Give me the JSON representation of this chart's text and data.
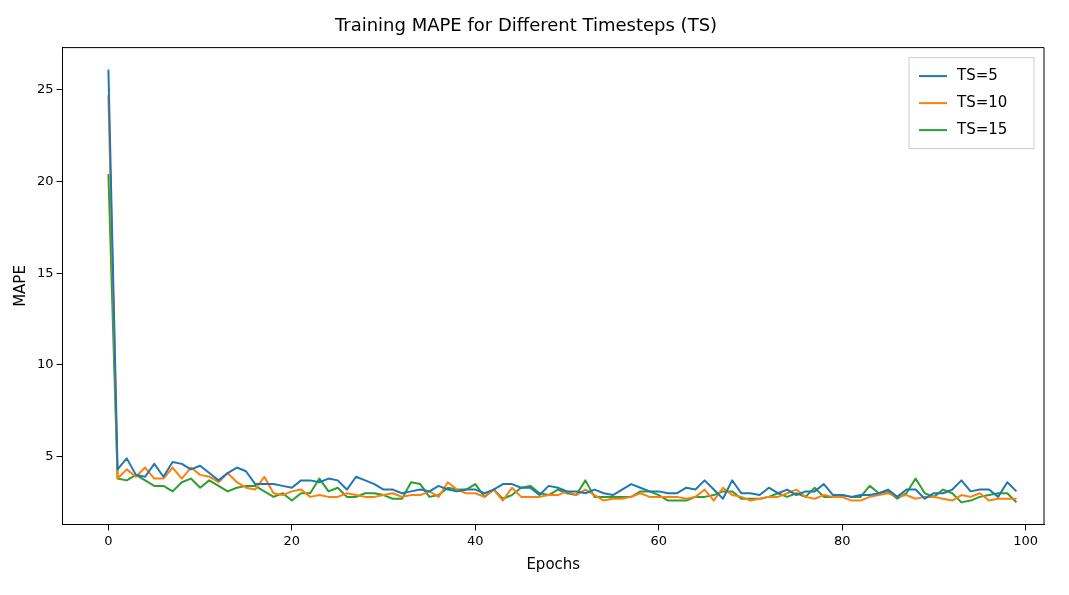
{
  "chart_data": {
    "type": "line",
    "title": "Training MAPE for Different Timesteps (TS)",
    "xlabel": "Epochs",
    "ylabel": "MAPE",
    "x": [
      0,
      1,
      2,
      3,
      4,
      5,
      6,
      7,
      8,
      9,
      10,
      11,
      12,
      13,
      14,
      15,
      16,
      17,
      18,
      19,
      20,
      21,
      22,
      23,
      24,
      25,
      26,
      27,
      28,
      29,
      30,
      31,
      32,
      33,
      34,
      35,
      36,
      37,
      38,
      39,
      40,
      41,
      42,
      43,
      44,
      45,
      46,
      47,
      48,
      49,
      50,
      51,
      52,
      53,
      54,
      55,
      56,
      57,
      58,
      59,
      60,
      61,
      62,
      63,
      64,
      65,
      66,
      67,
      68,
      69,
      70,
      71,
      72,
      73,
      74,
      75,
      76,
      77,
      78,
      79,
      80,
      81,
      82,
      83,
      84,
      85,
      86,
      87,
      88,
      89,
      90,
      91,
      92,
      93,
      94,
      95,
      96,
      97,
      98,
      99
    ],
    "series": [
      {
        "name": "TS=5",
        "color": "#1f77b4",
        "values": [
          26.1,
          4.3,
          4.9,
          4.0,
          3.9,
          4.6,
          3.9,
          4.7,
          4.6,
          4.3,
          4.5,
          4.1,
          3.7,
          4.1,
          4.4,
          4.2,
          3.5,
          3.5,
          3.5,
          3.4,
          3.3,
          3.7,
          3.7,
          3.6,
          3.8,
          3.7,
          3.2,
          3.9,
          3.7,
          3.5,
          3.2,
          3.2,
          3.0,
          3.1,
          3.2,
          3.1,
          3.4,
          3.2,
          3.1,
          3.2,
          3.2,
          3.0,
          3.2,
          3.5,
          3.5,
          3.3,
          3.3,
          2.9,
          3.4,
          3.3,
          3.1,
          3.1,
          3.0,
          3.2,
          3.0,
          2.9,
          3.2,
          3.5,
          3.3,
          3.1,
          3.1,
          3.0,
          3.0,
          3.3,
          3.2,
          3.7,
          3.2,
          2.7,
          3.7,
          3.0,
          3.0,
          2.9,
          3.3,
          3.0,
          3.2,
          2.9,
          3.1,
          3.1,
          3.5,
          2.9,
          2.9,
          2.8,
          2.9,
          2.9,
          3.0,
          3.2,
          2.8,
          3.2,
          3.2,
          2.7,
          3.0,
          3.0,
          3.2,
          3.7,
          3.1,
          3.2,
          3.2,
          2.8,
          3.6,
          3.1
        ]
      },
      {
        "name": "TS=10",
        "color": "#ff7f0e",
        "values": [
          24.7,
          3.8,
          4.3,
          3.9,
          4.4,
          3.8,
          3.8,
          4.4,
          3.8,
          4.4,
          4.0,
          3.9,
          3.6,
          4.1,
          3.6,
          3.3,
          3.2,
          3.9,
          3.0,
          2.9,
          3.1,
          3.2,
          2.8,
          2.9,
          2.8,
          2.8,
          3.0,
          2.9,
          2.8,
          2.8,
          2.9,
          3.0,
          2.8,
          2.9,
          2.9,
          3.1,
          2.8,
          3.6,
          3.2,
          3.0,
          3.0,
          2.8,
          3.2,
          2.6,
          3.3,
          2.8,
          2.8,
          2.8,
          2.9,
          2.9,
          3.1,
          2.9,
          3.2,
          2.9,
          2.6,
          2.7,
          2.7,
          2.8,
          3.0,
          2.8,
          2.8,
          2.8,
          2.8,
          2.7,
          2.8,
          3.2,
          2.6,
          3.3,
          2.9,
          2.8,
          2.6,
          2.7,
          2.8,
          2.8,
          3.0,
          3.2,
          2.8,
          2.7,
          2.9,
          2.8,
          2.8,
          2.6,
          2.6,
          2.8,
          2.9,
          3.0,
          2.8,
          2.9,
          2.7,
          2.8,
          2.8,
          2.7,
          2.6,
          2.9,
          2.8,
          3.0,
          2.6,
          2.7,
          2.7,
          2.7
        ]
      },
      {
        "name": "TS=15",
        "color": "#2ca02c",
        "values": [
          20.4,
          3.8,
          3.7,
          4.0,
          3.7,
          3.4,
          3.4,
          3.1,
          3.6,
          3.8,
          3.3,
          3.7,
          3.4,
          3.1,
          3.3,
          3.4,
          3.4,
          3.1,
          2.8,
          3.0,
          2.6,
          3.0,
          3.0,
          3.8,
          3.1,
          3.3,
          2.8,
          2.8,
          3.0,
          3.0,
          2.9,
          2.7,
          2.7,
          3.6,
          3.5,
          2.8,
          2.9,
          3.3,
          3.2,
          3.2,
          3.5,
          2.8,
          3.2,
          2.7,
          2.9,
          3.3,
          3.4,
          3.0,
          2.9,
          3.2,
          3.0,
          2.9,
          3.7,
          2.8,
          2.8,
          2.8,
          2.8,
          2.8,
          3.1,
          3.1,
          2.9,
          2.6,
          2.6,
          2.6,
          2.8,
          2.8,
          2.9,
          3.1,
          3.1,
          2.7,
          2.7,
          2.7,
          2.8,
          3.0,
          2.8,
          3.0,
          2.8,
          3.3,
          2.8,
          2.8,
          2.9,
          2.8,
          2.8,
          3.4,
          3.0,
          3.1,
          2.7,
          3.0,
          3.8,
          3.0,
          2.8,
          3.2,
          3.0,
          2.5,
          2.6,
          2.8,
          2.9,
          3.0,
          3.0,
          2.5
        ]
      }
    ],
    "xlim": [
      -5,
      102
    ],
    "xticks": [
      0,
      20,
      40,
      60,
      80,
      100
    ],
    "ylim": [
      1.3,
      27.3
    ],
    "yticks": [
      5,
      10,
      15,
      20,
      25
    ],
    "grid": false,
    "legend": "top right",
    "marker": "none",
    "line_style": "solid"
  }
}
